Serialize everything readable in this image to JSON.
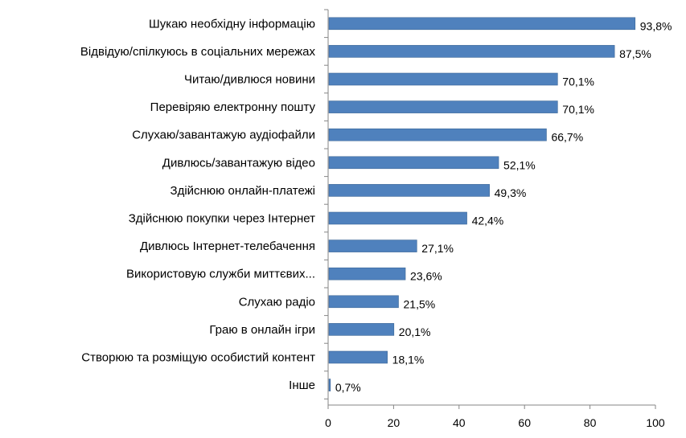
{
  "chart_data": {
    "type": "bar",
    "orientation": "horizontal",
    "categories": [
      "Шукаю необхідну інформацію",
      "Відвідую/спілкуюсь в соціальних мережах",
      "Читаю/дивлюся новини",
      "Перевіряю електронну пошту",
      "Слухаю/завантажую аудіофайли",
      "Дивлюсь/завантажую відео",
      "Здійснюю онлайн-платежі",
      "Здійснюю покупки через Інтернет",
      "Дивлюсь Інтернет-телебачення",
      "Використовую служби миттєвих...",
      "Слухаю радіо",
      "Граю в онлайн ігри",
      "Створюю та розміщую особистий контент",
      "Інше"
    ],
    "values": [
      93.8,
      87.5,
      70.1,
      70.1,
      66.7,
      52.1,
      49.3,
      42.4,
      27.1,
      23.6,
      21.5,
      20.1,
      18.1,
      0.7
    ],
    "value_labels": [
      "93,8%",
      "87,5%",
      "70,1%",
      "70,1%",
      "66,7%",
      "52,1%",
      "49,3%",
      "42,4%",
      "27,1%",
      "23,6%",
      "21,5%",
      "20,1%",
      "18,1%",
      "0,7%"
    ],
    "x_ticks": [
      "0",
      "20",
      "40",
      "60",
      "80",
      "100"
    ],
    "xlim": [
      0,
      100
    ],
    "grid": false,
    "legend": "none",
    "title": "",
    "xlabel": "",
    "ylabel": ""
  },
  "colors": {
    "bar": "#4f81bd",
    "bar_edge": "#3c6796",
    "axis": "#868686",
    "text": "#000000"
  }
}
